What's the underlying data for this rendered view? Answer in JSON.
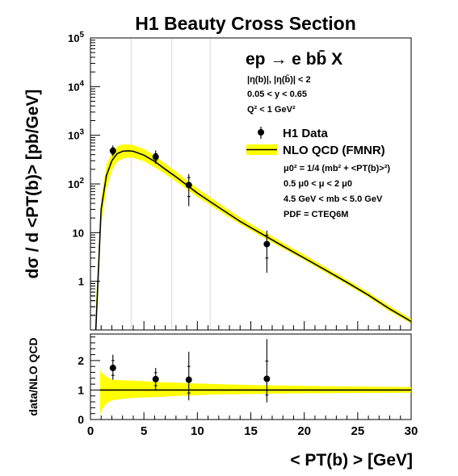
{
  "chart_data": [
    {
      "type": "line",
      "title": "H1 Beauty Cross Section",
      "ylabel": "dσ / d <PT(b)> [pb/GeV]",
      "yscale": "log",
      "ylim": [
        0.1,
        100000
      ],
      "xlim": [
        0,
        30
      ],
      "y_tick_labels": [
        "1",
        "10",
        "10^2",
        "10^3",
        "10^4",
        "10^5"
      ],
      "x_gridlines": [
        3.8,
        7.6,
        11.2
      ],
      "annotations": {
        "process": "ep → e bb̄ X",
        "cuts": [
          "|η(b)|, |η(b̄)| < 2",
          "0.05 < y < 0.65",
          "Q² < 1 GeV²"
        ],
        "theory_params": [
          "μ0² = 1/4 (mb² + <PT(b)>²)",
          "0.5 μ0 < μ < 2 μ0",
          "4.5 GeV < mb < 5.0 GeV",
          "PDF = CTEQ6M"
        ]
      },
      "legend": {
        "placement": "top-right",
        "entries": [
          "H1 Data",
          "NLO QCD (FMNR)"
        ]
      },
      "series": [
        {
          "name": "H1 Data",
          "kind": "points",
          "x": [
            2.1,
            6.1,
            9.2,
            16.5
          ],
          "y": [
            480,
            360,
            95,
            5.8
          ],
          "err_low": [
            110,
            100,
            60,
            4.3
          ],
          "err_high": [
            140,
            130,
            65,
            5.2
          ],
          "err_stat_low": [
            70,
            60,
            40,
            2.8
          ],
          "err_stat_high": [
            70,
            60,
            40,
            3.0
          ]
        },
        {
          "name": "NLO QCD (FMNR)",
          "kind": "band",
          "color": "#ffff00",
          "x": [
            0.5,
            1.0,
            1.5,
            2.0,
            2.5,
            3.0,
            3.5,
            4.0,
            5.0,
            6.0,
            7.0,
            8.0,
            9.0,
            10.0,
            12.0,
            14.0,
            16.0,
            18.0,
            20.0,
            22.0,
            24.0,
            26.0,
            28.0,
            30.0
          ],
          "y": [
            0.1,
            30,
            150,
            300,
            420,
            470,
            480,
            470,
            390,
            290,
            200,
            140,
            95,
            65,
            33,
            17,
            9.5,
            5.3,
            3.0,
            1.7,
            0.95,
            0.52,
            0.27,
            0.15
          ],
          "y_low": [
            0.08,
            15,
            80,
            190,
            290,
            330,
            350,
            345,
            290,
            220,
            160,
            112,
            77,
            54,
            28,
            14.8,
            8.3,
            4.7,
            2.7,
            1.5,
            0.85,
            0.47,
            0.24,
            0.135
          ],
          "y_high": [
            0.3,
            50,
            250,
            430,
            590,
            650,
            650,
            630,
            520,
            385,
            260,
            178,
            120,
            81,
            40,
            20.5,
            11.2,
            6.2,
            3.5,
            1.95,
            1.08,
            0.59,
            0.31,
            0.17
          ]
        }
      ]
    },
    {
      "type": "line",
      "ylabel": "data/NLO QCD",
      "xlabel": "< PT(b) > [GeV]",
      "ylim": [
        0,
        2.9
      ],
      "xlim": [
        0,
        30
      ],
      "y_tick_labels": [
        "0",
        "1",
        "2"
      ],
      "x_tick_labels": [
        "0",
        "5",
        "10",
        "15",
        "20",
        "25",
        "30"
      ],
      "series": [
        {
          "name": "H1 Data",
          "kind": "points",
          "x": [
            2.1,
            6.1,
            9.2,
            16.5
          ],
          "y": [
            1.75,
            1.37,
            1.35,
            1.38
          ],
          "err_low": [
            0.4,
            0.35,
            0.7,
            0.8
          ],
          "err_high": [
            0.45,
            0.38,
            0.95,
            1.35
          ],
          "err_stat_low": [
            0.25,
            0.22,
            0.45,
            0.55
          ],
          "err_stat_high": [
            0.25,
            0.22,
            0.45,
            0.6
          ]
        },
        {
          "name": "NLO QCD (FMNR)",
          "kind": "band",
          "color": "#ffff00",
          "x": [
            0.9,
            1.0,
            1.5,
            2.0,
            3.0,
            4.0,
            5.0,
            6.0,
            8.0,
            10.0,
            12.0,
            15.0,
            20.0,
            25.0,
            30.0
          ],
          "y": [
            1,
            1,
            1,
            1,
            1,
            1,
            1,
            1,
            1,
            1,
            1,
            1,
            1,
            1,
            1
          ],
          "y_low": [
            0.15,
            0.3,
            0.55,
            0.65,
            0.7,
            0.73,
            0.75,
            0.76,
            0.8,
            0.83,
            0.85,
            0.87,
            0.89,
            0.9,
            0.91
          ],
          "y_high": [
            1.7,
            1.6,
            1.45,
            1.35,
            1.33,
            1.32,
            1.3,
            1.28,
            1.25,
            1.22,
            1.2,
            1.17,
            1.14,
            1.12,
            1.1
          ]
        }
      ]
    }
  ]
}
